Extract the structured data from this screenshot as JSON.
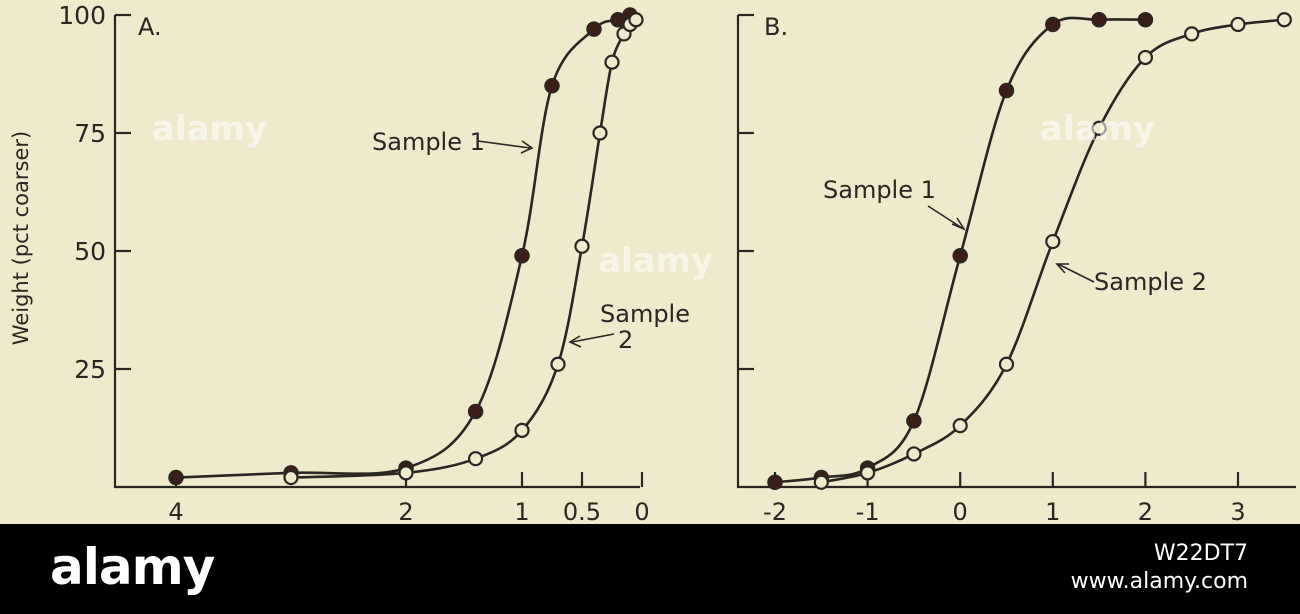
{
  "chart_data": [
    {
      "panel": "A.",
      "type": "line",
      "ylabel": "Weight (pct coarser)",
      "ylim": [
        0,
        100
      ],
      "xlim": [
        4.3,
        -0.05
      ],
      "x_direction": "reversed",
      "yticks": [
        25,
        50,
        75,
        100
      ],
      "ytick_labels": [
        "25",
        "50",
        "75",
        "100"
      ],
      "xticks": [
        4,
        2,
        1,
        0.5,
        0
      ],
      "xtick_labels": [
        "4",
        "2",
        "1",
        "0.5",
        "0"
      ],
      "grid": false,
      "series": [
        {
          "marker": "filled",
          "points": [
            [
              4,
              2
            ],
            [
              3,
              3
            ],
            [
              2,
              4
            ],
            [
              1.4,
              16
            ],
            [
              1,
              49
            ],
            [
              0.75,
              85
            ],
            [
              0.4,
              97
            ],
            [
              0.2,
              99
            ],
            [
              0.1,
              100
            ]
          ],
          "label_text": "Sample 1"
        },
        {
          "marker": "open",
          "points": [
            [
              3,
              2
            ],
            [
              2,
              3
            ],
            [
              1.4,
              6
            ],
            [
              1,
              12
            ],
            [
              0.7,
              26
            ],
            [
              0.5,
              51
            ],
            [
              0.35,
              75
            ],
            [
              0.25,
              90
            ],
            [
              0.15,
              96
            ],
            [
              0.1,
              98
            ],
            [
              0.05,
              99
            ]
          ],
          "label_text": "Sample\n2"
        }
      ]
    },
    {
      "panel": "B.",
      "type": "line",
      "ylabel": "",
      "ylim": [
        0,
        100
      ],
      "xlim": [
        -2.3,
        3.6
      ],
      "x_direction": "normal",
      "yticks": [
        25,
        50,
        75,
        100
      ],
      "ytick_labels": [],
      "xticks": [
        -2,
        -1,
        0,
        1,
        2,
        3
      ],
      "xtick_labels": [
        "-2",
        "-1",
        "0",
        "1",
        "2",
        "3"
      ],
      "grid": false,
      "series": [
        {
          "marker": "filled",
          "points": [
            [
              -2,
              1
            ],
            [
              -1.5,
              2
            ],
            [
              -1,
              4
            ],
            [
              -0.5,
              14
            ],
            [
              0,
              49
            ],
            [
              0.5,
              84
            ],
            [
              1,
              98
            ],
            [
              1.5,
              99
            ],
            [
              2,
              99
            ]
          ],
          "label_text": "Sample 1"
        },
        {
          "marker": "open",
          "points": [
            [
              -1.5,
              1
            ],
            [
              -1,
              3
            ],
            [
              -0.5,
              7
            ],
            [
              0,
              13
            ],
            [
              0.5,
              26
            ],
            [
              1,
              52
            ],
            [
              1.5,
              76
            ],
            [
              2,
              91
            ],
            [
              2.5,
              96
            ],
            [
              3,
              98
            ],
            [
              3.5,
              99
            ]
          ],
          "label_text": "Sample 2"
        }
      ]
    }
  ],
  "watermark": "alamy",
  "banner": {
    "logo": "alamy",
    "image_id": "W22DT7",
    "url": "www.alamy.com"
  }
}
